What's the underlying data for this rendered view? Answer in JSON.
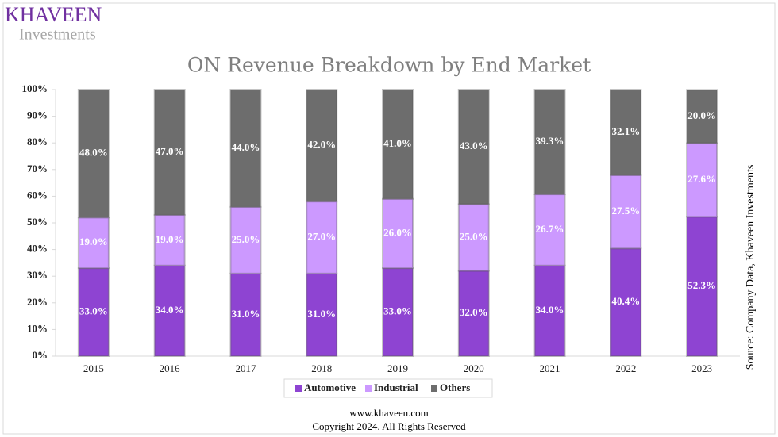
{
  "logo": {
    "name": "KHAVEEN",
    "tagline": "Investments"
  },
  "chart_data": {
    "type": "stacked_bar",
    "title": "ON Revenue Breakdown by End Market",
    "categories": [
      "2015",
      "2016",
      "2017",
      "2018",
      "2019",
      "2020",
      "2021",
      "2022",
      "2023"
    ],
    "series": [
      {
        "name": "Automotive",
        "color": "#8e44d2",
        "values": [
          33,
          34,
          31,
          31,
          33,
          32,
          34,
          40.4,
          52.3
        ],
        "value_labels": [
          "33.0%",
          "34.0%",
          "31.0%",
          "31.0%",
          "33.0%",
          "32.0%",
          "34.0%",
          "40.4%",
          "52.3%"
        ]
      },
      {
        "name": "Industrial",
        "color": "#cc99ff",
        "values": [
          19,
          19,
          25,
          27,
          26,
          25,
          26.7,
          27.5,
          27.6
        ],
        "value_labels": [
          "19.0%",
          "19.0%",
          "25.0%",
          "27.0%",
          "26.0%",
          "25.0%",
          "26.7%",
          "27.5%",
          "27.6%"
        ]
      },
      {
        "name": "Others",
        "color": "#6d6d6d",
        "values": [
          48,
          47,
          44,
          42,
          41,
          43,
          39.3,
          32.1,
          20
        ],
        "value_labels": [
          "48.0%",
          "47.0%",
          "44.0%",
          "42.0%",
          "41.0%",
          "43.0%",
          "39.3%",
          "32.1%",
          "20.0%"
        ]
      }
    ],
    "ylim": [
      0,
      100
    ],
    "yticks": [
      {
        "value": 0,
        "label": "0%"
      },
      {
        "value": 10,
        "label": "10%"
      },
      {
        "value": 20,
        "label": "20%"
      },
      {
        "value": 30,
        "label": "30%"
      },
      {
        "value": 40,
        "label": "40%"
      },
      {
        "value": 50,
        "label": "50%"
      },
      {
        "value": 60,
        "label": "60%"
      },
      {
        "value": 70,
        "label": "70%"
      },
      {
        "value": 80,
        "label": "80%"
      },
      {
        "value": 90,
        "label": "90%"
      },
      {
        "value": 100,
        "label": "100%"
      }
    ],
    "grid": false,
    "legend": "bottom"
  },
  "source": "Source: Company Data, Khaveen Investments",
  "footer": {
    "website": "www.khaveen.com",
    "copyright": "Copyright 2024. All Rights Reserved"
  }
}
